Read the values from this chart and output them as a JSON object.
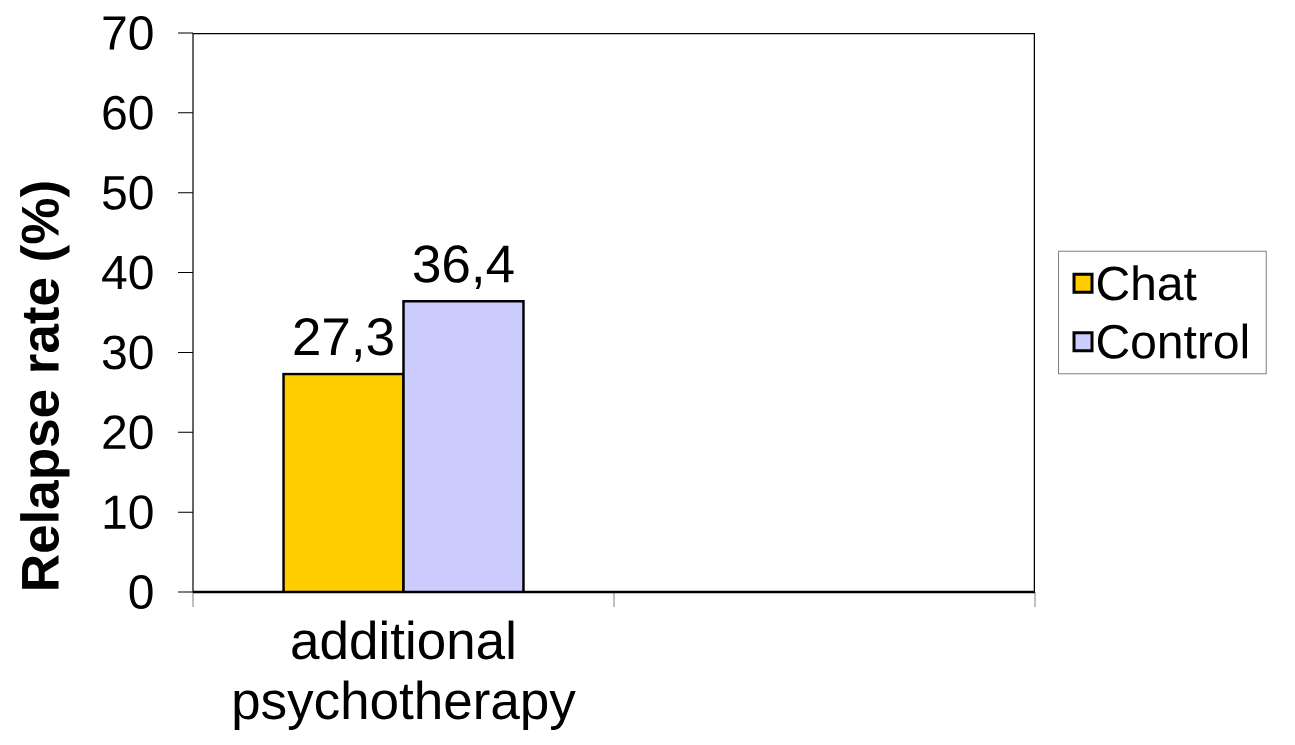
{
  "chart_data": {
    "type": "bar",
    "ylabel": "Relapse rate (%)",
    "categories": [
      "additional psychotherapy",
      null
    ],
    "series": [
      {
        "name": "Chat",
        "color": "#ffcc00",
        "values": [
          27.3,
          null
        ],
        "value_labels": [
          "27,3",
          null
        ]
      },
      {
        "name": "Control",
        "color": "#ccccff",
        "values": [
          36.4,
          null
        ],
        "value_labels": [
          "36,4",
          null
        ]
      }
    ],
    "ylim": [
      0,
      70
    ],
    "yticks": [
      0,
      10,
      20,
      30,
      40,
      50,
      60,
      70
    ],
    "legend": "right"
  }
}
